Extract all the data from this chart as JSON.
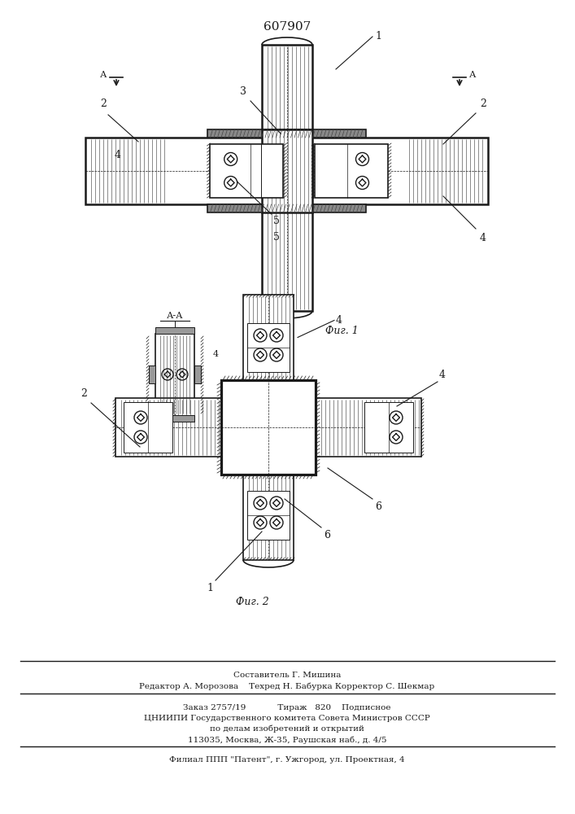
{
  "patent_number": "607907",
  "fig1_caption": "Фиг. 1",
  "fig2_caption": "Фиг. 2",
  "section_label": "А-А",
  "footer_lines": [
    "Составитель Г. Мишина",
    "Редактор А. Морозова    Техред Н. Бабурка Корректор С. Шекмар",
    "Заказ 2757/19            Тираж   820    Подписное",
    "ЦНИИПИ Государственного комитета Совета Министров СССР",
    "по делам изобретений и открытий",
    "113035, Москва, Ж-35, Раушская наб., д. 4/5",
    "Филиал ППП \"Патент\", г. Ужгород, ул. Проектная, 4"
  ],
  "bg_color": "#ffffff",
  "line_color": "#1a1a1a",
  "hatch_color": "#333333"
}
